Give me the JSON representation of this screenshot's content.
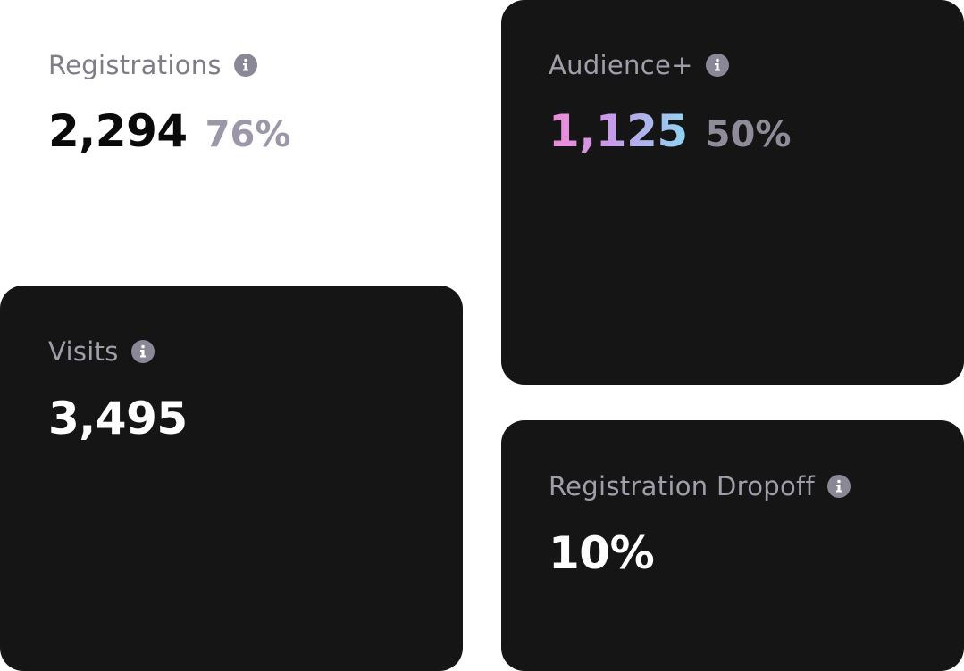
{
  "cards": {
    "registrations": {
      "label": "Registrations",
      "value": "2,294",
      "percent": "76%"
    },
    "audience": {
      "label": "Audience+",
      "value": "1,125",
      "percent": "50%"
    },
    "visits": {
      "label": "Visits",
      "value": "3,495"
    },
    "dropoff": {
      "label": "Registration Dropoff",
      "value": "10%"
    }
  },
  "icons": {
    "info": "info-icon"
  },
  "colors": {
    "card_background": "#151515",
    "page_background": "#ffffff",
    "info_icon": "#8a8796",
    "gradient_start": "#f08ad6",
    "gradient_end": "#8fd4f0"
  }
}
